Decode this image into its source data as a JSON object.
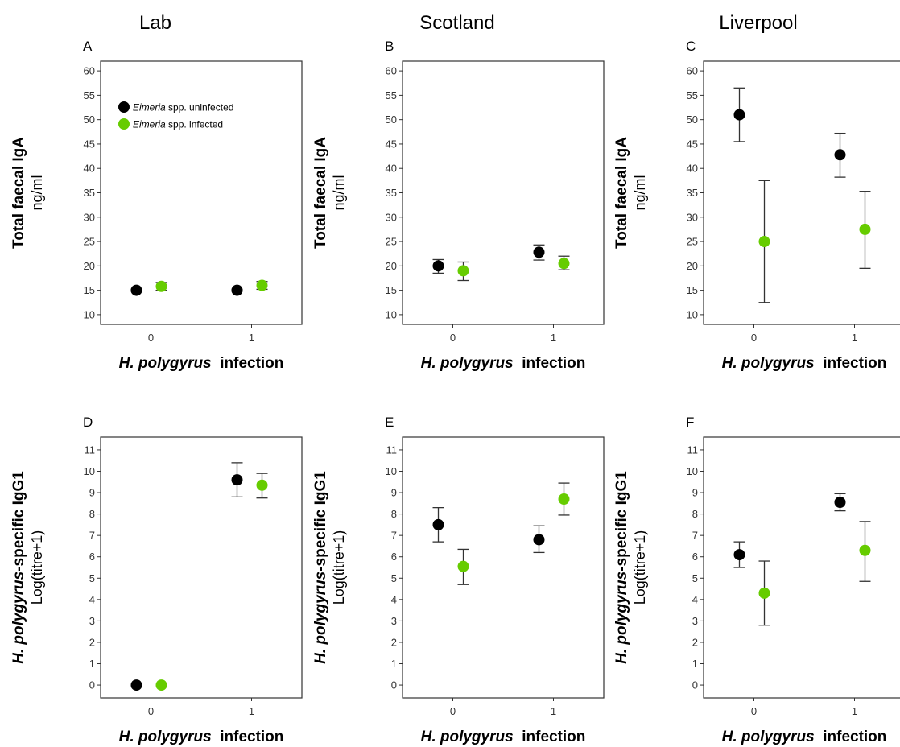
{
  "colors": {
    "eimeria_uninfected": "#000000",
    "eimeria_infected": "#66cc00",
    "error_bar": "#333333",
    "panel_border": "#333333"
  },
  "columns": [
    "Lab",
    "Scotland",
    "Liverpool"
  ],
  "xlabel": {
    "italic": "H. polygyrus",
    "rest": "infection"
  },
  "row_labels": {
    "iga": {
      "main": "Total faecal IgA",
      "unit": "ng/ml"
    },
    "igg1": {
      "italic": "H. polygyrus",
      "main": "-specific IgG1",
      "unit": "Log(titre+1)"
    }
  },
  "legend": {
    "position": "top-left",
    "items": [
      {
        "italic": "Eimeria",
        "rest": "spp. uninfected",
        "color": "#000000"
      },
      {
        "italic": "Eimeria",
        "rest": "spp. infected",
        "color": "#66cc00"
      }
    ]
  },
  "chart_data": [
    {
      "panel": "A",
      "column": "Lab",
      "type": "scatter",
      "categories": [
        "0",
        "1"
      ],
      "ylim": [
        8,
        62
      ],
      "yticks": [
        10,
        15,
        20,
        25,
        30,
        35,
        40,
        45,
        50,
        55,
        60
      ],
      "series": [
        {
          "name": "Eimeria spp. uninfected",
          "values": [
            15.0,
            15.0
          ],
          "lower": [
            14.8,
            14.8
          ],
          "upper": [
            15.2,
            15.2
          ]
        },
        {
          "name": "Eimeria spp. infected",
          "values": [
            15.8,
            16.0
          ],
          "lower": [
            15.0,
            15.2
          ],
          "upper": [
            16.6,
            16.8
          ]
        }
      ]
    },
    {
      "panel": "B",
      "column": "Scotland",
      "type": "scatter",
      "categories": [
        "0",
        "1"
      ],
      "ylim": [
        8,
        62
      ],
      "yticks": [
        10,
        15,
        20,
        25,
        30,
        35,
        40,
        45,
        50,
        55,
        60
      ],
      "series": [
        {
          "name": "Eimeria spp. uninfected",
          "values": [
            20.0,
            22.8
          ],
          "lower": [
            18.5,
            21.2
          ],
          "upper": [
            21.3,
            24.3
          ]
        },
        {
          "name": "Eimeria spp. infected",
          "values": [
            19.0,
            20.5
          ],
          "lower": [
            17.0,
            19.2
          ],
          "upper": [
            20.8,
            22.0
          ]
        }
      ]
    },
    {
      "panel": "C",
      "column": "Liverpool",
      "type": "scatter",
      "categories": [
        "0",
        "1"
      ],
      "ylim": [
        8,
        62
      ],
      "yticks": [
        10,
        15,
        20,
        25,
        30,
        35,
        40,
        45,
        50,
        55,
        60
      ],
      "series": [
        {
          "name": "Eimeria spp. uninfected",
          "values": [
            51.0,
            42.8
          ],
          "lower": [
            45.5,
            38.2
          ],
          "upper": [
            56.5,
            47.2
          ]
        },
        {
          "name": "Eimeria spp. infected",
          "values": [
            25.0,
            27.5
          ],
          "lower": [
            12.5,
            19.5
          ],
          "upper": [
            37.5,
            35.3
          ]
        }
      ]
    },
    {
      "panel": "D",
      "column": "Lab",
      "type": "scatter",
      "categories": [
        "0",
        "1"
      ],
      "ylim": [
        -0.6,
        11.6
      ],
      "yticks": [
        0,
        1,
        2,
        3,
        4,
        5,
        6,
        7,
        8,
        9,
        10,
        11
      ],
      "series": [
        {
          "name": "Eimeria spp. uninfected",
          "values": [
            0.0,
            9.6
          ],
          "lower": [
            0.0,
            8.8
          ],
          "upper": [
            0.0,
            10.4
          ]
        },
        {
          "name": "Eimeria spp. infected",
          "values": [
            0.0,
            9.35
          ],
          "lower": [
            0.0,
            8.75
          ],
          "upper": [
            0.0,
            9.9
          ]
        }
      ]
    },
    {
      "panel": "E",
      "column": "Scotland",
      "type": "scatter",
      "categories": [
        "0",
        "1"
      ],
      "ylim": [
        -0.6,
        11.6
      ],
      "yticks": [
        0,
        1,
        2,
        3,
        4,
        5,
        6,
        7,
        8,
        9,
        10,
        11
      ],
      "series": [
        {
          "name": "Eimeria spp. uninfected",
          "values": [
            7.5,
            6.8
          ],
          "lower": [
            6.7,
            6.2
          ],
          "upper": [
            8.3,
            7.45
          ]
        },
        {
          "name": "Eimeria spp. infected",
          "values": [
            5.55,
            8.7
          ],
          "lower": [
            4.7,
            7.95
          ],
          "upper": [
            6.35,
            9.45
          ]
        }
      ]
    },
    {
      "panel": "F",
      "column": "Liverpool",
      "type": "scatter",
      "categories": [
        "0",
        "1"
      ],
      "ylim": [
        -0.6,
        11.6
      ],
      "yticks": [
        0,
        1,
        2,
        3,
        4,
        5,
        6,
        7,
        8,
        9,
        10,
        11
      ],
      "series": [
        {
          "name": "Eimeria spp. uninfected",
          "values": [
            6.1,
            8.55
          ],
          "lower": [
            5.5,
            8.15
          ],
          "upper": [
            6.7,
            8.95
          ]
        },
        {
          "name": "Eimeria spp. infected",
          "values": [
            4.3,
            6.3
          ],
          "lower": [
            2.8,
            4.85
          ],
          "upper": [
            5.8,
            7.65
          ]
        }
      ]
    }
  ]
}
